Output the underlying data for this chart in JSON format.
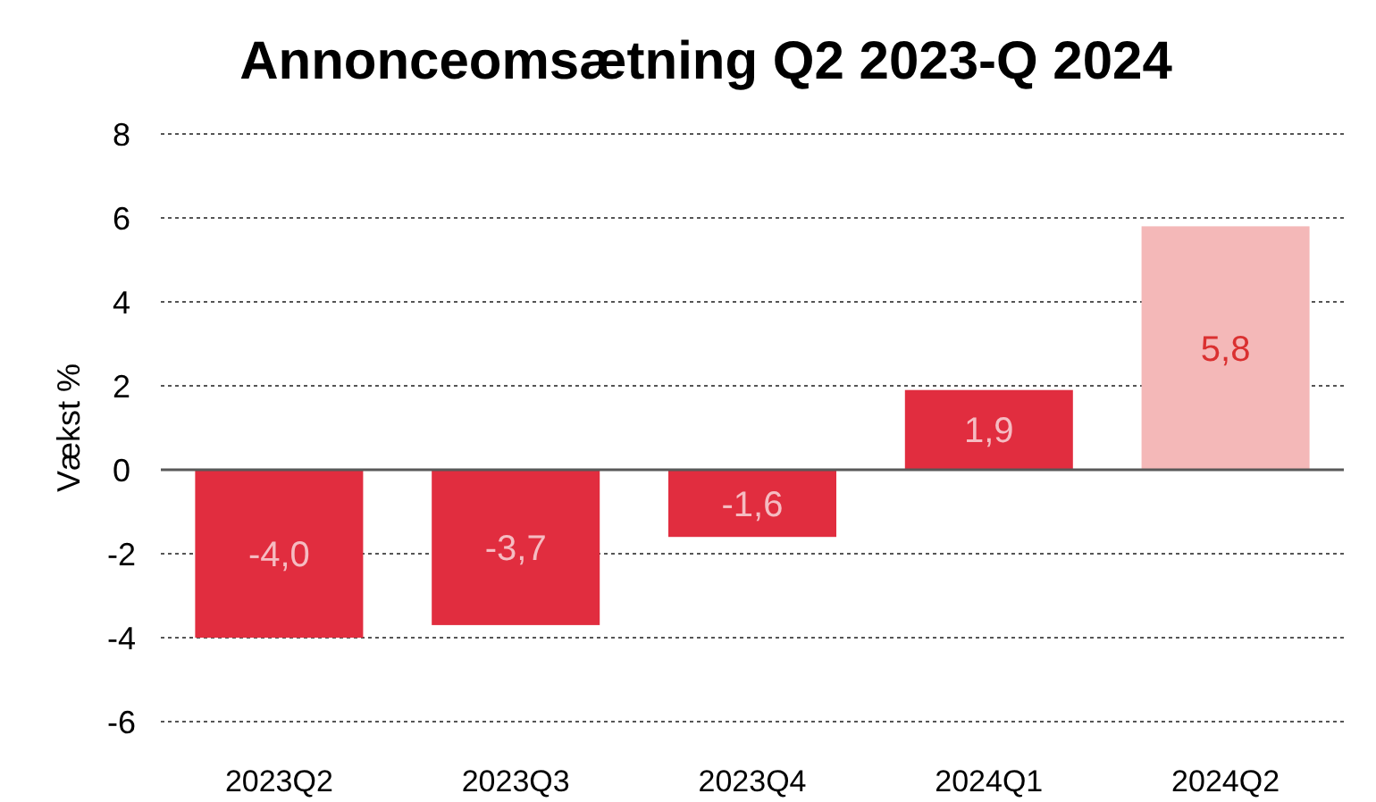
{
  "chart_data": {
    "type": "bar",
    "title": "Annonceomsætning Q2 2023-Q 2024",
    "ylabel": "Vækst %",
    "categories": [
      "2023Q2",
      "2023Q3",
      "2023Q4",
      "2024Q1",
      "2024Q2"
    ],
    "values": [
      -4.0,
      -3.7,
      -1.6,
      1.9,
      5.8
    ],
    "colors": [
      "#e12d3f",
      "#e12d3f",
      "#e12d3f",
      "#e12d3f",
      "#f4b8b8"
    ],
    "value_labels": [
      "-4,0",
      "-3,7",
      "-1,6",
      "1,9",
      "5,8"
    ],
    "ylim": [
      -6,
      8
    ],
    "yticks": [
      -6,
      -4,
      -2,
      0,
      2,
      4,
      6,
      8
    ],
    "grid": "y"
  }
}
